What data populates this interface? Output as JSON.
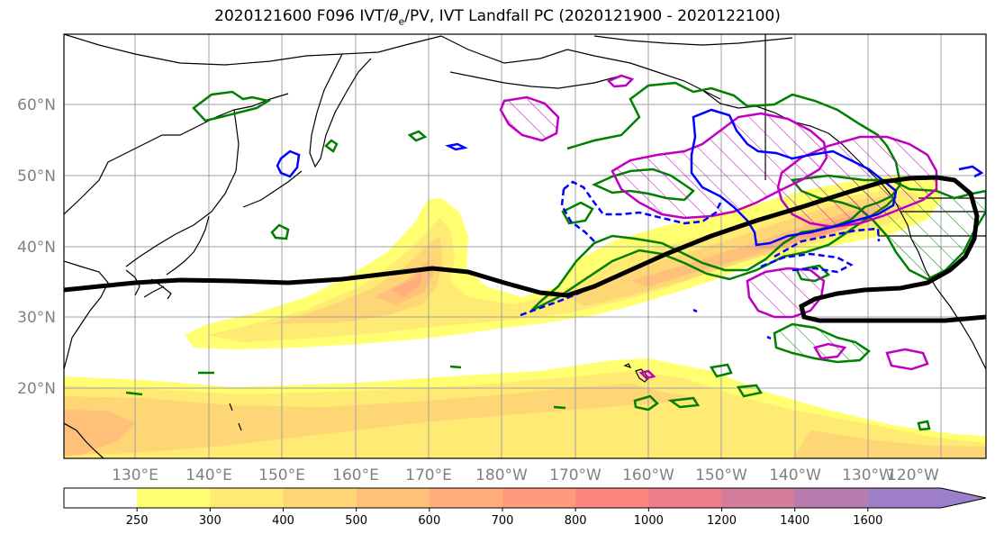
{
  "title": {
    "prefix": "2020121600 F096 IVT/",
    "theta": "θ",
    "theta_sub": "e",
    "suffix": "/PV, IVT Landfall PC (2020121900 - 2020122100)"
  },
  "map": {
    "lat_labels": [
      "60°N",
      "50°N",
      "40°N",
      "30°N",
      "20°N"
    ],
    "lon_labels": [
      "130°E",
      "140°E",
      "150°E",
      "160°E",
      "170°E",
      "180°W",
      "170°W",
      "160°W",
      "150°W",
      "140°W",
      "130°W",
      "120°W"
    ],
    "colors": {
      "ivt_low": "#ffff70",
      "ivt_mid": "#ffd27a",
      "ivt_high": "#ffa878",
      "landfall_pc": "#000000",
      "theta_e": "#0000ff",
      "pv_green": "#008000",
      "pv_magenta": "#c000c0",
      "coast": "#000000",
      "grid": "#a0a0a0"
    }
  },
  "colorbar": {
    "ticks": [
      "250",
      "300",
      "400",
      "500",
      "600",
      "700",
      "800",
      "1000",
      "1200",
      "1400",
      "1600"
    ],
    "colors": [
      "#ffffff",
      "#ffff70",
      "#ffea73",
      "#ffd676",
      "#ffc17a",
      "#ffae7c",
      "#ff9a7c",
      "#ff867e",
      "#ef7d8c",
      "#d47c9c",
      "#b77dae",
      "#a17ec8",
      "#9b7fcc"
    ]
  }
}
